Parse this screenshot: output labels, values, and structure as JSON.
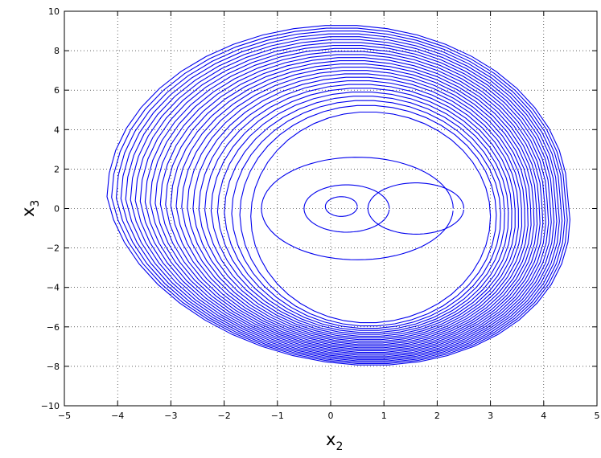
{
  "chart_data": {
    "type": "line",
    "title": "",
    "xlabel_main": "x",
    "xlabel_sub": "2",
    "ylabel_main": "x",
    "ylabel_sub": "3",
    "xlim": [
      -5,
      5
    ],
    "ylim": [
      -10,
      10
    ],
    "x_ticks": [
      -5,
      -4,
      -3,
      -2,
      -1,
      0,
      1,
      2,
      3,
      4,
      5
    ],
    "y_ticks": [
      -10,
      -8,
      -6,
      -4,
      -2,
      0,
      2,
      4,
      6,
      8,
      10
    ],
    "x_tick_labels": [
      "−5",
      "−4",
      "−3",
      "−2",
      "−1",
      "0",
      "1",
      "2",
      "3",
      "4",
      "5"
    ],
    "y_tick_labels": [
      "−10",
      "−8",
      "−6",
      "−4",
      "−2",
      "0",
      "2",
      "4",
      "6",
      "8",
      "10"
    ],
    "grid": true,
    "grid_style": "dotted",
    "line_color": "#0000ee",
    "series": [
      {
        "description_of_shape": "phase-space trajectory spiraling outward from origin into a large limit-cycle-like band",
        "inner_loops": [
          {
            "cx": 0.2,
            "cy": 0.1,
            "rx": 0.3,
            "ry": 0.5
          },
          {
            "cx": 0.3,
            "cy": 0.0,
            "rx": 0.8,
            "ry": 1.2
          },
          {
            "cx": 1.6,
            "cy": 0.0,
            "rx": 0.9,
            "ry": 1.3
          },
          {
            "cx": 0.5,
            "cy": 0.0,
            "rx": 1.8,
            "ry": 2.6
          }
        ],
        "outer_band": {
          "right_x": [
            3.0,
            4.45
          ],
          "left_x": [
            -1.5,
            -4.2
          ],
          "top_y": [
            4.9,
            9.3
          ],
          "bottom_y": [
            -5.8,
            -7.95
          ],
          "center_x": [
            0.7,
            0.2
          ],
          "center_y": [
            -0.4,
            0.6
          ],
          "turns": 26
        }
      }
    ]
  }
}
